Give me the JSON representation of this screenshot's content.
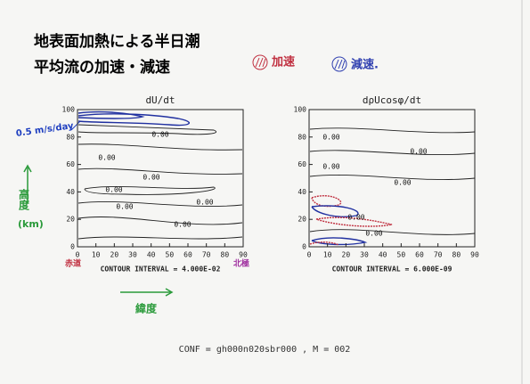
{
  "header": {
    "title_line1": "地表面加熱による半日潮",
    "title_line2": "平均流の加速・減速"
  },
  "legend": {
    "accel": "加速",
    "decel": "減速."
  },
  "plots": [
    {
      "title": "dU/dt",
      "xlim": [
        0,
        90
      ],
      "ylim": [
        0,
        100
      ],
      "xticks": [
        0,
        10,
        20,
        30,
        40,
        50,
        60,
        70,
        80,
        90
      ],
      "yticks": [
        0,
        20,
        40,
        60,
        80,
        100
      ],
      "contour_labels": [
        "0.00",
        "0.00",
        "0.00",
        "0.00",
        "0.00",
        "0.00",
        "0.00"
      ],
      "interval": "CONTOUR INTERVAL = 4.000E-02"
    },
    {
      "title": "dρUcosφ/dt",
      "xlim": [
        0,
        90
      ],
      "ylim": [
        0,
        100
      ],
      "xticks": [
        0,
        10,
        20,
        30,
        40,
        50,
        60,
        70,
        80,
        90
      ],
      "yticks": [
        0,
        20,
        40,
        60,
        80,
        100
      ],
      "contour_labels": [
        "0.00",
        "0.00",
        "0.00",
        "0.00",
        "0.00",
        "0.00"
      ],
      "interval": "CONTOUR INTERVAL = 6.000E-09"
    }
  ],
  "notes": {
    "wind_unit": "0.5 m/s/day",
    "height": "高度",
    "height_unit": "(km)",
    "equator": "赤道",
    "pole": "北極",
    "latitude": "緯度"
  },
  "footer": "CONF = gh000n020sbr000 , M = 002"
}
